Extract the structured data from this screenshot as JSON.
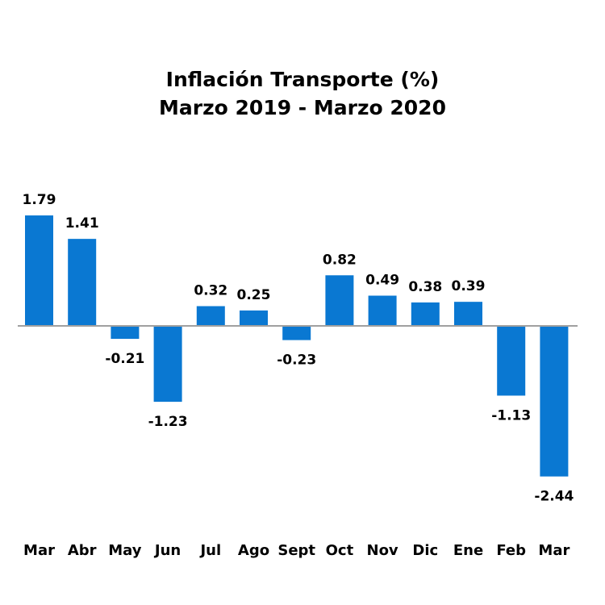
{
  "chart_data": {
    "type": "bar",
    "title": "Inflación Transporte (%)",
    "subtitle": "Marzo 2019 -  Marzo 2020",
    "categories": [
      "Mar",
      "Abr",
      "May",
      "Jun",
      "Jul",
      "Ago",
      "Sept",
      "Oct",
      "Nov",
      "Dic",
      "Ene",
      "Feb",
      "Mar"
    ],
    "values": [
      1.79,
      1.41,
      -0.21,
      -1.23,
      0.32,
      0.25,
      -0.23,
      0.82,
      0.49,
      0.38,
      0.39,
      -1.13,
      -2.44
    ],
    "data_labels": [
      "1.79",
      "1.41",
      "-0.21",
      "-1.23",
      "0.32",
      "0.25",
      "-0.23",
      "0.82",
      "0.49",
      "0.38",
      "0.39",
      "-1.13",
      "-2.44"
    ],
    "xlabel": "",
    "ylabel": "",
    "grid": false,
    "legend": "none",
    "colors": {
      "bar": "#0a78d2",
      "zero_line": "#a0a0a0"
    }
  }
}
